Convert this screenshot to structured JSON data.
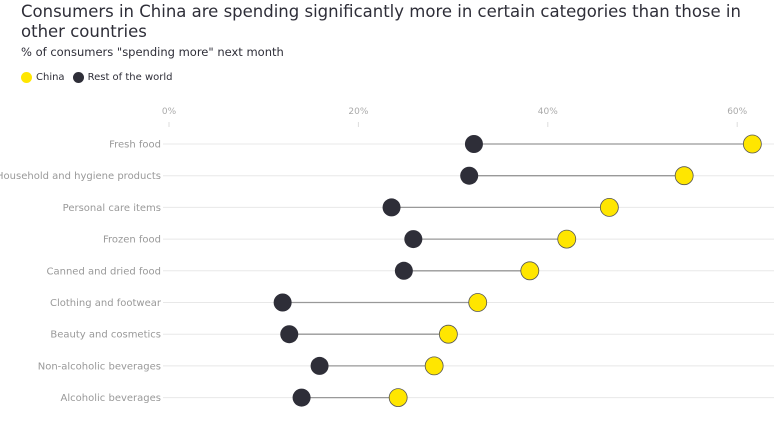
{
  "chart_data": {
    "type": "dumbbell",
    "title": "Consumers in China are spending significantly more in certain categories than those in other countries",
    "subtitle": "% of consumers \"spending more\" next month",
    "xlim": [
      0,
      64
    ],
    "xticks": [
      0,
      20,
      40,
      60
    ],
    "xtick_labels": [
      "0%",
      "20%",
      "40%",
      "60%"
    ],
    "legend_placement": "top-left",
    "categories": [
      "Fresh food",
      "Household and hygiene products",
      "Personal care items",
      "Frozen food",
      "Canned and dried food",
      "Clothing and footwear",
      "Beauty and cosmetics",
      "Non-alcoholic beverages",
      "Alcoholic beverages"
    ],
    "series": [
      {
        "name": "China",
        "color": "#ffe600",
        "values": [
          61.6,
          54.4,
          46.5,
          42.0,
          38.1,
          32.6,
          29.5,
          28.0,
          24.2
        ]
      },
      {
        "name": "Rest of the world",
        "color": "#2e2e38",
        "values": [
          32.2,
          31.7,
          23.5,
          25.8,
          24.8,
          12.0,
          12.7,
          15.9,
          14.0
        ]
      }
    ]
  }
}
